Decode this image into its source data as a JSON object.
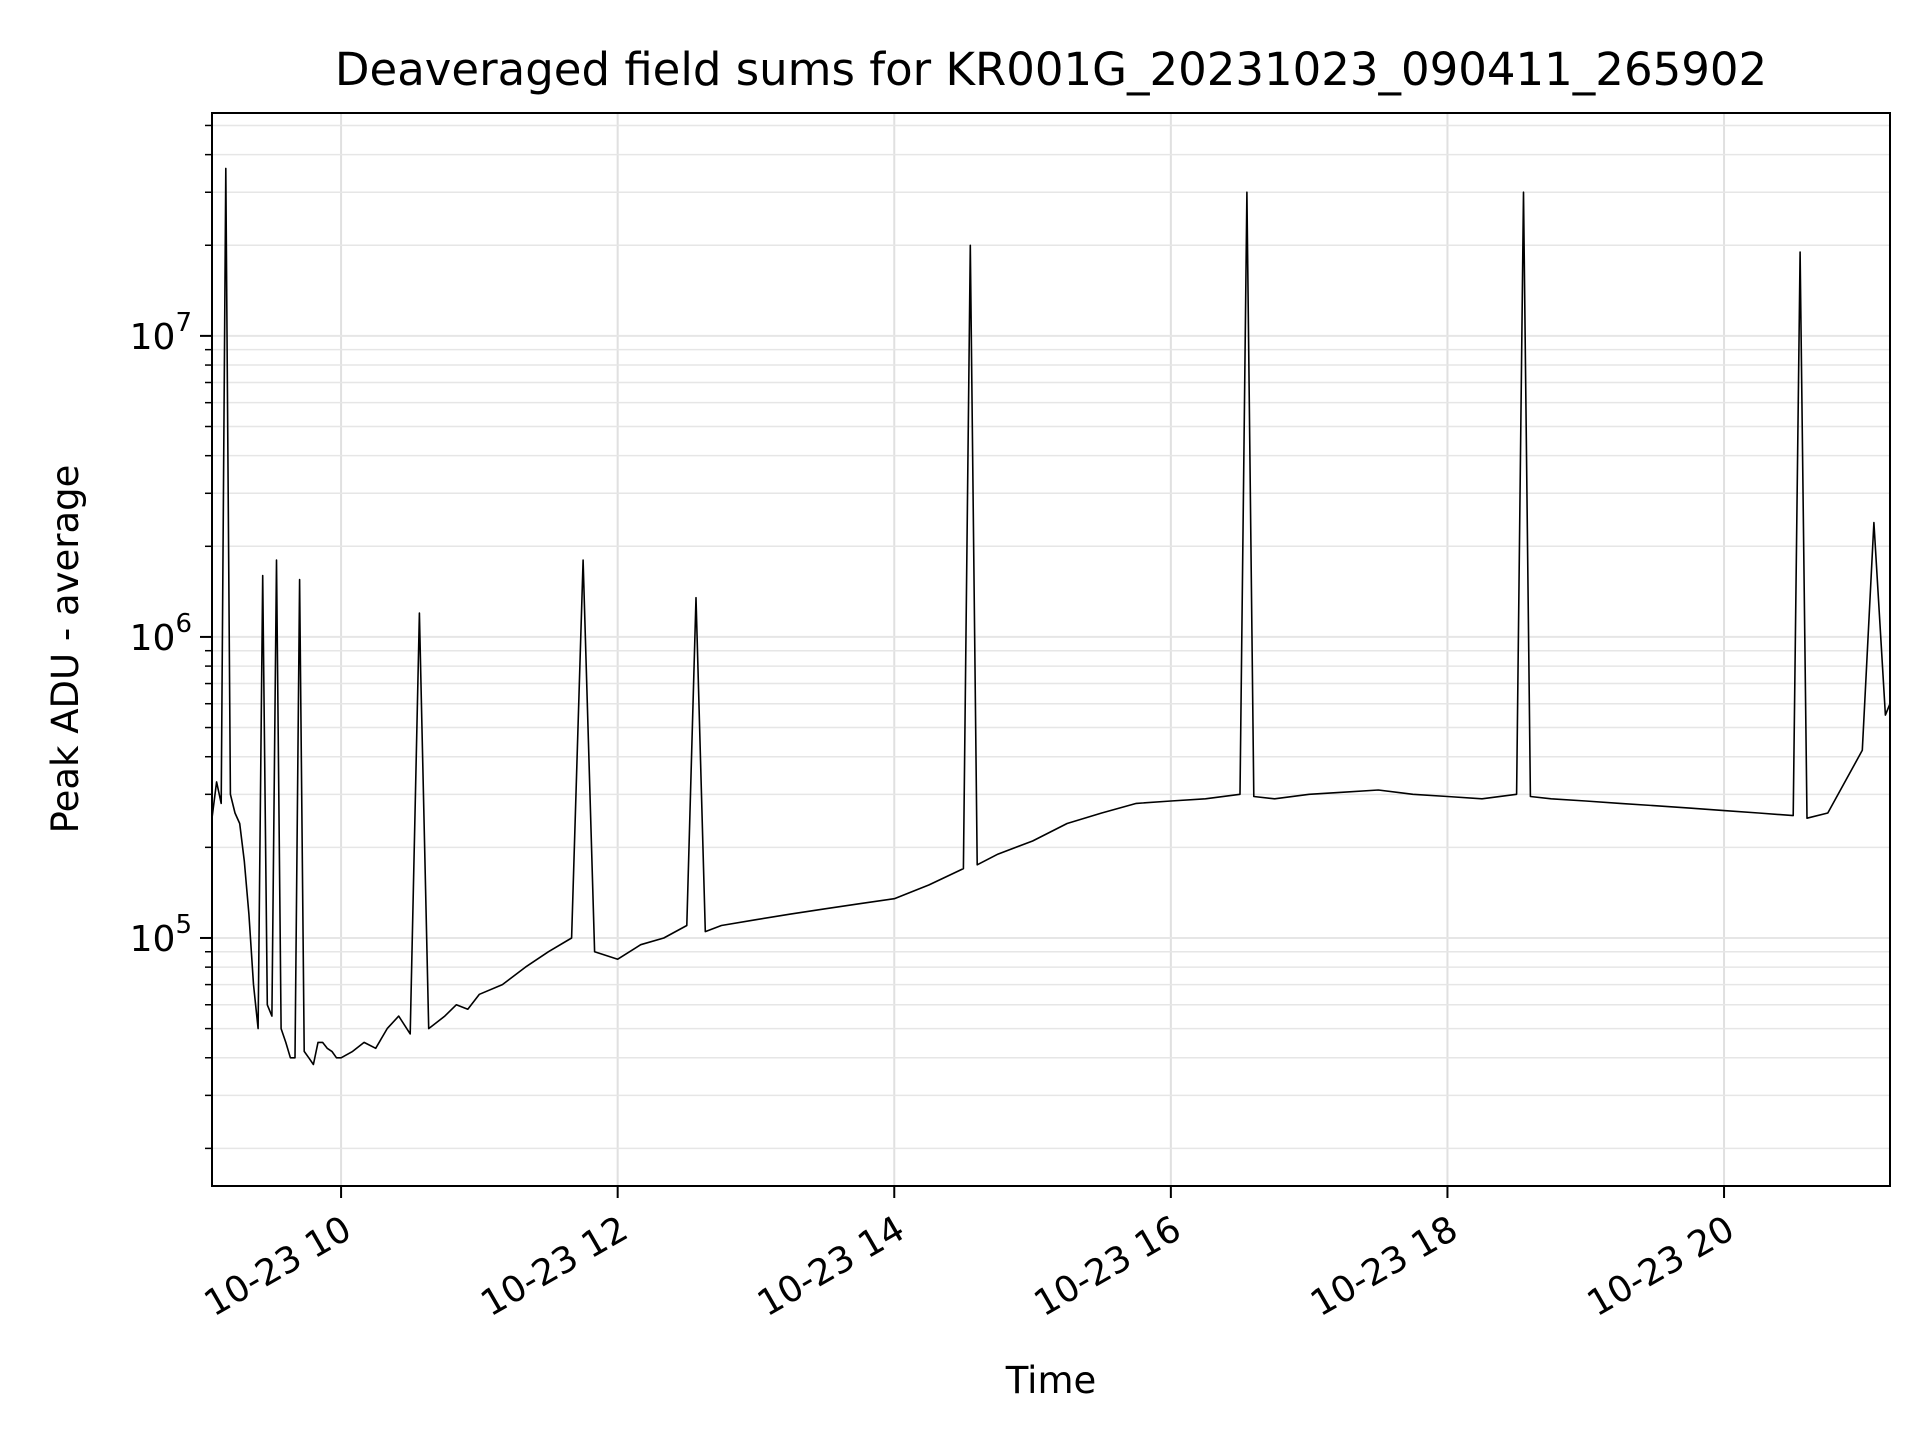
{
  "chart_data": {
    "type": "line",
    "title": "Deaveraged field sums for KR001G_20231023_090411_265902",
    "xlabel": "Time",
    "ylabel": "Peak ADU - average",
    "xlim": [
      "2023-10-23 09:04",
      "2023-10-23 21:12"
    ],
    "ylim": [
      15000,
      55000000
    ],
    "yscale": "log",
    "grid": true,
    "line_color": "#000000",
    "x_ticks": [
      {
        "value": "2023-10-23 10:00",
        "label": "10-23 10"
      },
      {
        "value": "2023-10-23 12:00",
        "label": "10-23 12"
      },
      {
        "value": "2023-10-23 14:00",
        "label": "10-23 14"
      },
      {
        "value": "2023-10-23 16:00",
        "label": "10-23 16"
      },
      {
        "value": "2023-10-23 18:00",
        "label": "10-23 18"
      },
      {
        "value": "2023-10-23 20:00",
        "label": "10-23 20"
      }
    ],
    "y_ticks": [
      {
        "value": 100000,
        "base": "10",
        "exp": "5"
      },
      {
        "value": 1000000,
        "base": "10",
        "exp": "6"
      },
      {
        "value": 10000000,
        "base": "10",
        "exp": "7"
      }
    ],
    "series": [
      {
        "x": [
          "2023-10-23 09:04",
          "2023-10-23 09:06",
          "2023-10-23 09:08",
          "2023-10-23 09:10",
          "2023-10-23 09:12",
          "2023-10-23 09:14",
          "2023-10-23 09:16",
          "2023-10-23 09:18",
          "2023-10-23 09:20",
          "2023-10-23 09:22",
          "2023-10-23 09:24",
          "2023-10-23 09:26",
          "2023-10-23 09:28",
          "2023-10-23 09:30",
          "2023-10-23 09:32",
          "2023-10-23 09:34",
          "2023-10-23 09:36",
          "2023-10-23 09:38",
          "2023-10-23 09:40",
          "2023-10-23 09:42",
          "2023-10-23 09:44",
          "2023-10-23 09:46",
          "2023-10-23 09:48",
          "2023-10-23 09:50",
          "2023-10-23 09:52",
          "2023-10-23 09:54",
          "2023-10-23 09:56",
          "2023-10-23 09:58",
          "2023-10-23 10:00",
          "2023-10-23 10:05",
          "2023-10-23 10:10",
          "2023-10-23 10:15",
          "2023-10-23 10:20",
          "2023-10-23 10:25",
          "2023-10-23 10:30",
          "2023-10-23 10:34",
          "2023-10-23 10:38",
          "2023-10-23 10:45",
          "2023-10-23 10:50",
          "2023-10-23 10:55",
          "2023-10-23 11:00",
          "2023-10-23 11:10",
          "2023-10-23 11:20",
          "2023-10-23 11:30",
          "2023-10-23 11:40",
          "2023-10-23 11:45",
          "2023-10-23 11:50",
          "2023-10-23 12:00",
          "2023-10-23 12:10",
          "2023-10-23 12:20",
          "2023-10-23 12:30",
          "2023-10-23 12:34",
          "2023-10-23 12:38",
          "2023-10-23 12:45",
          "2023-10-23 13:00",
          "2023-10-23 13:15",
          "2023-10-23 13:30",
          "2023-10-23 13:45",
          "2023-10-23 14:00",
          "2023-10-23 14:15",
          "2023-10-23 14:30",
          "2023-10-23 14:33",
          "2023-10-23 14:36",
          "2023-10-23 14:45",
          "2023-10-23 15:00",
          "2023-10-23 15:15",
          "2023-10-23 15:30",
          "2023-10-23 15:45",
          "2023-10-23 16:00",
          "2023-10-23 16:15",
          "2023-10-23 16:30",
          "2023-10-23 16:33",
          "2023-10-23 16:36",
          "2023-10-23 16:45",
          "2023-10-23 17:00",
          "2023-10-23 17:15",
          "2023-10-23 17:30",
          "2023-10-23 17:45",
          "2023-10-23 18:00",
          "2023-10-23 18:15",
          "2023-10-23 18:30",
          "2023-10-23 18:33",
          "2023-10-23 18:36",
          "2023-10-23 18:45",
          "2023-10-23 19:00",
          "2023-10-23 19:15",
          "2023-10-23 19:30",
          "2023-10-23 19:45",
          "2023-10-23 20:00",
          "2023-10-23 20:15",
          "2023-10-23 20:30",
          "2023-10-23 20:33",
          "2023-10-23 20:36",
          "2023-10-23 20:45",
          "2023-10-23 21:00",
          "2023-10-23 21:05",
          "2023-10-23 21:10",
          "2023-10-23 21:12"
        ],
        "y": [
          250000,
          330000,
          280000,
          36000000,
          300000,
          260000,
          240000,
          180000,
          120000,
          70000,
          50000,
          1600000,
          60000,
          55000,
          1800000,
          50000,
          45000,
          40000,
          40000,
          1550000,
          42000,
          40000,
          38000,
          45000,
          45000,
          43000,
          42000,
          40000,
          40000,
          42000,
          45000,
          43000,
          50000,
          55000,
          48000,
          1200000,
          50000,
          55000,
          60000,
          58000,
          65000,
          70000,
          80000,
          90000,
          100000,
          1800000,
          90000,
          85000,
          95000,
          100000,
          110000,
          1350000,
          105000,
          110000,
          115000,
          120000,
          125000,
          130000,
          135000,
          150000,
          170000,
          20000000,
          175000,
          190000,
          210000,
          240000,
          260000,
          280000,
          285000,
          290000,
          300000,
          30000000,
          295000,
          290000,
          300000,
          305000,
          310000,
          300000,
          295000,
          290000,
          300000,
          30000000,
          295000,
          290000,
          285000,
          280000,
          275000,
          270000,
          265000,
          260000,
          255000,
          19000000,
          250000,
          260000,
          420000,
          2400000,
          550000,
          600000
        ]
      }
    ]
  }
}
